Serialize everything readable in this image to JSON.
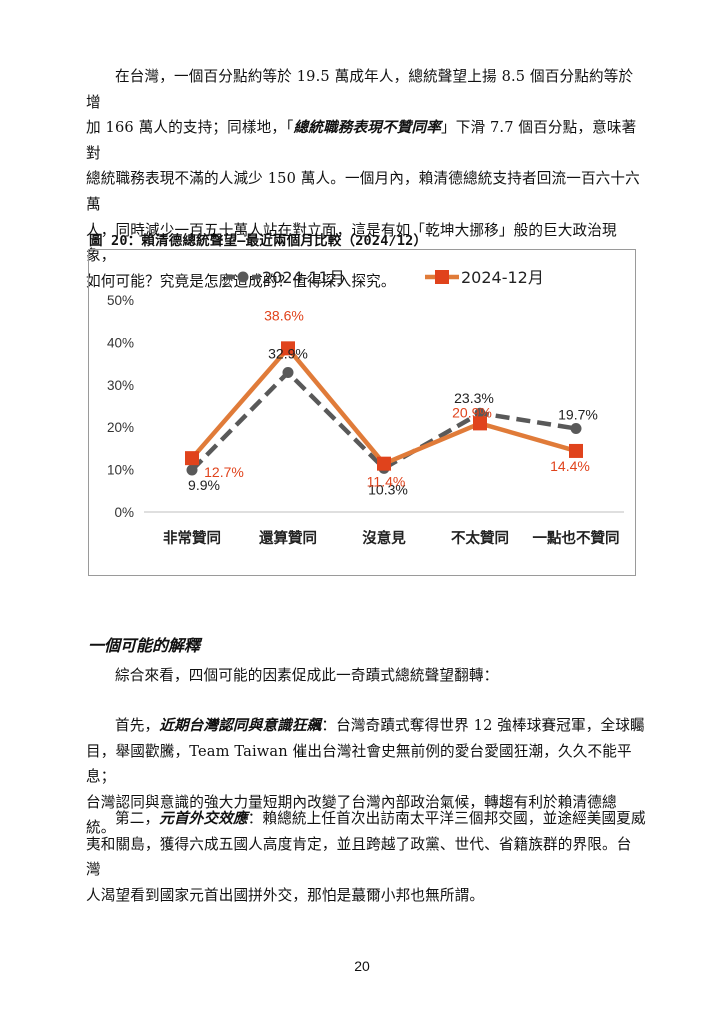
{
  "paragraph1": {
    "lines": [
      "在台灣，一個百分點約等於 19.5 萬成年人，總統聲望上揚 8.5 個百分點約等於增",
      "加 166 萬人的支持；同樣地，「",
      "總統職務表現不贊同率",
      "」下滑 7.7 個百分點，意味著對",
      "總統職務表現不滿的人減少 150 萬人。一個月內，賴清德總統支持者回流一百六十六萬",
      "人，同時減少一百五十萬人站在對立面，這是有如「乾坤大挪移」般的巨大政治現象，",
      "如何可能？究竟是怎麼造成的？值得深入探究。"
    ]
  },
  "figure_caption": "圖 20：賴清德總統聲望—最近兩個月比較（2024/12）",
  "chart_data": {
    "type": "line",
    "categories": [
      "非常贊同",
      "還算贊同",
      "沒意見",
      "不太贊同",
      "一點也不贊同"
    ],
    "series": [
      {
        "name": "2024-11月",
        "values": [
          9.9,
          32.9,
          10.3,
          23.3,
          19.7
        ],
        "labels": [
          "9.9%",
          "32.9%",
          "10.3%",
          "23.3%",
          "19.7%"
        ],
        "color": "#595959",
        "style": "dashed",
        "marker": "circle"
      },
      {
        "name": "2024-12月",
        "values": [
          12.7,
          38.6,
          11.4,
          20.9,
          14.4
        ],
        "labels": [
          "12.7%",
          "38.6%",
          "11.4%",
          "20.9%",
          "14.4%"
        ],
        "color": "#E07B39",
        "label_color": "#E0431C",
        "marker_color": "#E0431C",
        "style": "solid",
        "marker": "square"
      }
    ],
    "ylim": [
      0,
      50
    ],
    "yticks": [
      "0%",
      "10%",
      "20%",
      "30%",
      "40%",
      "50%"
    ],
    "legend": "top",
    "grid": false
  },
  "section_heading": "一個可能的解釋",
  "paragraph2": "綜合來看，四個可能的因素促成此一奇蹟式總統聲望翻轉：",
  "paragraph3": {
    "lead": "首先，",
    "emph": "近期台灣認同與意識狂飆",
    "line1_rest": "：台灣奇蹟式奪得世界 12 強棒球賽冠軍，全球矚",
    "line2": "目，舉國歡騰，Team Taiwan 催出台灣社會史無前例的愛台愛國狂潮，久久不能平息；",
    "line3": "台灣認同與意識的強大力量短期內改變了台灣內部政治氣候，轉趨有利於賴清德總統。"
  },
  "paragraph4": {
    "lead": "第二，",
    "emph": "元首外交效應",
    "line1_rest": "：賴總統上任首次出訪南太平洋三個邦交國，並途經美國夏威",
    "line2": "夷和關島，獲得六成五國人高度肯定，並且跨越了政黨、世代、省籍族群的界限。台灣",
    "line3": "人渴望看到國家元首出國拼外交，那怕是蕞爾小邦也無所謂。"
  },
  "page_number": "20"
}
